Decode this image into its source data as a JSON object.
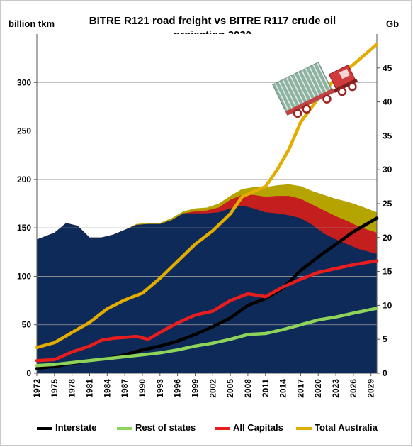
{
  "chart_data": {
    "type": "area",
    "title_lines": [
      "BITRE R121 road freight vs BITRE R117 crude oil",
      "projection 2030"
    ],
    "ylabel_left": "billion tkm",
    "ylabel_right": "Gb",
    "ylim_left": [
      0,
      350
    ],
    "ylim_right": [
      0,
      50
    ],
    "yticks_left": [
      0,
      50,
      100,
      150,
      200,
      250,
      300
    ],
    "yticks_right": [
      0,
      5,
      10,
      15,
      20,
      25,
      30,
      35,
      40,
      45
    ],
    "grid": true,
    "legend_placement": "bottom",
    "xlim": [
      1972,
      2030
    ],
    "xticks": [
      "1972",
      "1975",
      "1978",
      "1981",
      "1984",
      "1987",
      "1990",
      "1993",
      "1996",
      "1999",
      "2002",
      "2005",
      "2008",
      "2011",
      "2014",
      "2017",
      "2020",
      "2023",
      "2026",
      "2029"
    ],
    "areas": [
      {
        "color": "#b5a300",
        "top": [
          [
            1972,
            138
          ],
          [
            1975,
            145
          ],
          [
            1977,
            155
          ],
          [
            1979,
            152
          ],
          [
            1981,
            140
          ],
          [
            1983,
            140
          ],
          [
            1985,
            143
          ],
          [
            1987,
            148
          ],
          [
            1989,
            154
          ],
          [
            1991,
            155
          ],
          [
            1993,
            155
          ],
          [
            1995,
            160
          ],
          [
            1997,
            167
          ],
          [
            1999,
            170
          ],
          [
            2001,
            171
          ],
          [
            2003,
            175
          ],
          [
            2005,
            183
          ],
          [
            2007,
            190
          ],
          [
            2009,
            192
          ],
          [
            2011,
            192
          ],
          [
            2013,
            194
          ],
          [
            2015,
            195
          ],
          [
            2017,
            193
          ],
          [
            2019,
            188
          ],
          [
            2021,
            184
          ],
          [
            2023,
            180
          ],
          [
            2025,
            177
          ],
          [
            2027,
            173
          ],
          [
            2030,
            166
          ]
        ]
      },
      {
        "color": "#c41e1e",
        "top": [
          [
            1972,
            138
          ],
          [
            1975,
            145
          ],
          [
            1977,
            155
          ],
          [
            1979,
            152
          ],
          [
            1981,
            140
          ],
          [
            1983,
            140
          ],
          [
            1985,
            143
          ],
          [
            1987,
            148
          ],
          [
            1989,
            153
          ],
          [
            1991,
            154
          ],
          [
            1993,
            154
          ],
          [
            1995,
            158
          ],
          [
            1997,
            165
          ],
          [
            1999,
            167
          ],
          [
            2001,
            168
          ],
          [
            2003,
            171
          ],
          [
            2005,
            179
          ],
          [
            2007,
            184
          ],
          [
            2009,
            184
          ],
          [
            2011,
            182
          ],
          [
            2013,
            183
          ],
          [
            2015,
            183
          ],
          [
            2017,
            180
          ],
          [
            2019,
            174
          ],
          [
            2021,
            168
          ],
          [
            2023,
            162
          ],
          [
            2025,
            157
          ],
          [
            2027,
            151
          ],
          [
            2030,
            145
          ]
        ]
      },
      {
        "color": "#0e2a59",
        "top": [
          [
            1972,
            138
          ],
          [
            1975,
            145
          ],
          [
            1977,
            155
          ],
          [
            1979,
            152
          ],
          [
            1981,
            140
          ],
          [
            1983,
            140
          ],
          [
            1985,
            143
          ],
          [
            1987,
            148
          ],
          [
            1989,
            153
          ],
          [
            1991,
            154
          ],
          [
            1993,
            154
          ],
          [
            1995,
            158
          ],
          [
            1997,
            165
          ],
          [
            1999,
            165
          ],
          [
            2001,
            165
          ],
          [
            2003,
            166
          ],
          [
            2005,
            170
          ],
          [
            2007,
            173
          ],
          [
            2009,
            170
          ],
          [
            2011,
            166
          ],
          [
            2013,
            165
          ],
          [
            2015,
            163
          ],
          [
            2017,
            160
          ],
          [
            2019,
            153
          ],
          [
            2021,
            144
          ],
          [
            2023,
            138
          ],
          [
            2025,
            133
          ],
          [
            2027,
            128
          ],
          [
            2030,
            123
          ]
        ]
      }
    ],
    "series": [
      {
        "name": "Interstate",
        "color": "#000000",
        "axis": "left",
        "points": [
          [
            1972,
            5
          ],
          [
            1975,
            7
          ],
          [
            1978,
            10
          ],
          [
            1981,
            13
          ],
          [
            1984,
            15
          ],
          [
            1987,
            19
          ],
          [
            1990,
            24
          ],
          [
            1993,
            28
          ],
          [
            1996,
            33
          ],
          [
            1999,
            40
          ],
          [
            2002,
            48
          ],
          [
            2005,
            57
          ],
          [
            2008,
            70
          ],
          [
            2011,
            77
          ],
          [
            2014,
            88
          ],
          [
            2017,
            106
          ],
          [
            2020,
            120
          ],
          [
            2023,
            133
          ],
          [
            2026,
            146
          ],
          [
            2030,
            160
          ]
        ]
      },
      {
        "name": "Rest of states",
        "color": "#8ed35a",
        "axis": "left",
        "points": [
          [
            1972,
            8
          ],
          [
            1975,
            9
          ],
          [
            1978,
            11
          ],
          [
            1981,
            13
          ],
          [
            1984,
            15
          ],
          [
            1987,
            17
          ],
          [
            1990,
            19
          ],
          [
            1993,
            21
          ],
          [
            1996,
            24
          ],
          [
            1999,
            28
          ],
          [
            2002,
            31
          ],
          [
            2005,
            35
          ],
          [
            2008,
            40
          ],
          [
            2011,
            41
          ],
          [
            2014,
            45
          ],
          [
            2017,
            50
          ],
          [
            2020,
            55
          ],
          [
            2023,
            58
          ],
          [
            2026,
            62
          ],
          [
            2030,
            67
          ]
        ]
      },
      {
        "name": "All Capitals",
        "color": "#e81e1e",
        "axis": "left",
        "points": [
          [
            1972,
            13
          ],
          [
            1975,
            14
          ],
          [
            1978,
            22
          ],
          [
            1981,
            28
          ],
          [
            1983,
            34
          ],
          [
            1985,
            36
          ],
          [
            1987,
            37
          ],
          [
            1989,
            38
          ],
          [
            1991,
            35
          ],
          [
            1993,
            42
          ],
          [
            1996,
            52
          ],
          [
            1999,
            60
          ],
          [
            2002,
            64
          ],
          [
            2005,
            75
          ],
          [
            2008,
            82
          ],
          [
            2011,
            79
          ],
          [
            2014,
            89
          ],
          [
            2017,
            97
          ],
          [
            2020,
            104
          ],
          [
            2023,
            108
          ],
          [
            2026,
            112
          ],
          [
            2030,
            116
          ]
        ]
      },
      {
        "name": "Total Australia",
        "color": "#e2ac00",
        "axis": "right",
        "points": [
          [
            1972,
            3.8
          ],
          [
            1975,
            4.5
          ],
          [
            1978,
            6
          ],
          [
            1981,
            7.5
          ],
          [
            1984,
            9.5
          ],
          [
            1987,
            10.8
          ],
          [
            1990,
            11.8
          ],
          [
            1993,
            14
          ],
          [
            1996,
            16.5
          ],
          [
            1999,
            19
          ],
          [
            2002,
            21
          ],
          [
            2005,
            23.5
          ],
          [
            2007,
            26
          ],
          [
            2009,
            26.8
          ],
          [
            2011,
            27.5
          ],
          [
            2013,
            30
          ],
          [
            2015,
            33
          ],
          [
            2017,
            37
          ],
          [
            2020,
            40.5
          ],
          [
            2023,
            43.5
          ],
          [
            2026,
            45.5
          ],
          [
            2030,
            48.5
          ]
        ]
      }
    ]
  },
  "legend": [
    {
      "label": "Interstate",
      "color": "#000000"
    },
    {
      "label": "Rest of states",
      "color": "#8ed35a"
    },
    {
      "label": "All Capitals",
      "color": "#e81e1e"
    },
    {
      "label": "Total Australia",
      "color": "#e2ac00"
    }
  ],
  "truck_icon": "truck-icon"
}
